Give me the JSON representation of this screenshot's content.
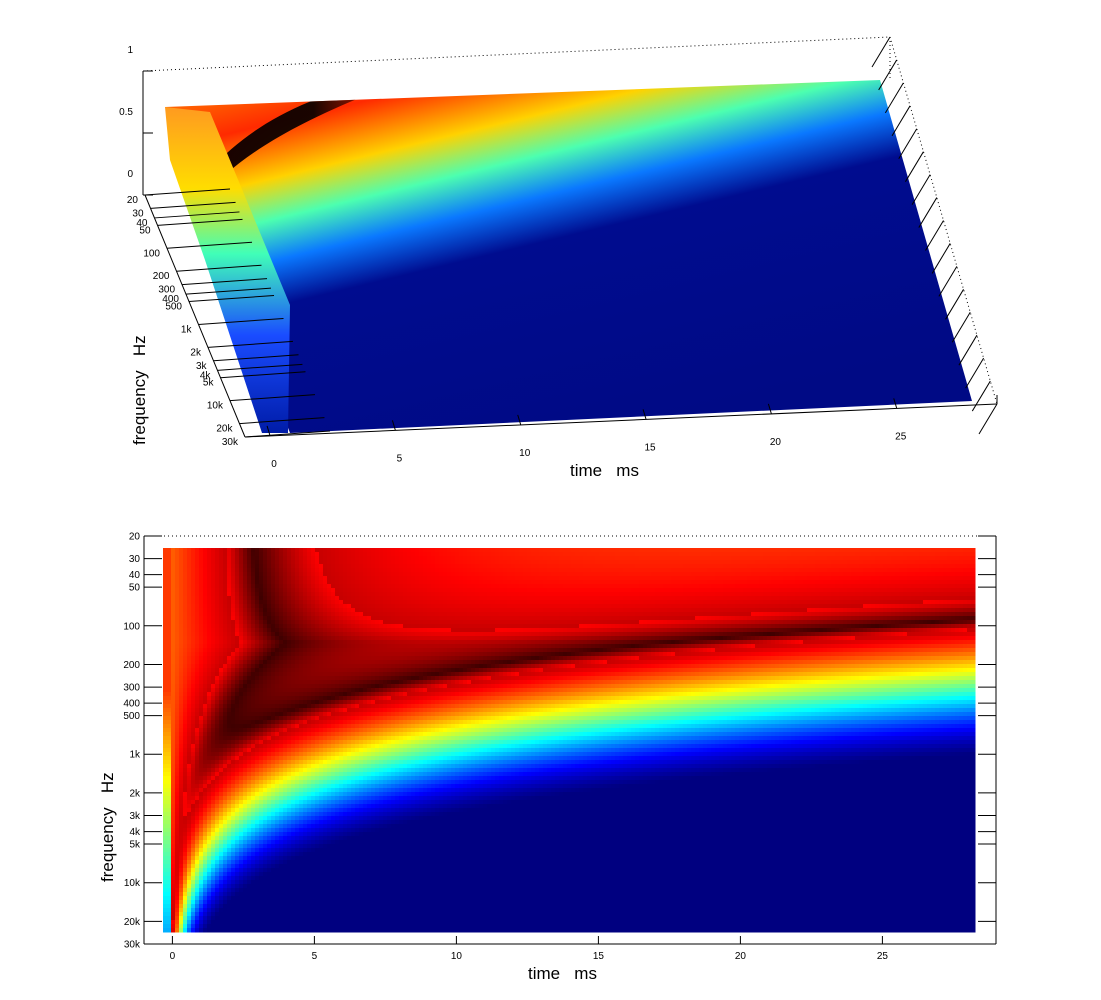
{
  "chart_data": [
    {
      "type": "surface",
      "view": "3d",
      "xlabel": "time   ms",
      "ylabel": "frequency   Hz",
      "x_ticks": [
        0,
        5,
        10,
        15,
        20,
        25
      ],
      "x_tick_labels": [
        "0",
        "5",
        "10",
        "15",
        "20",
        "25"
      ],
      "xlim": [
        -1,
        29
      ],
      "y_ticks": [
        20,
        30,
        40,
        50,
        100,
        200,
        300,
        400,
        500,
        1000,
        2000,
        3000,
        4000,
        5000,
        10000,
        20000,
        30000
      ],
      "y_tick_labels": [
        "20",
        "30",
        "40",
        "50",
        "100",
        "200",
        "300",
        "400",
        "500",
        "1k",
        "2k",
        "3k",
        "4k",
        "5k",
        "10k",
        "20k",
        "30k"
      ],
      "y_scale": "log",
      "ylim": [
        20,
        30000
      ],
      "z_ticks": [
        0,
        0.5,
        1
      ],
      "z_tick_labels": [
        "0",
        "0.5",
        "1"
      ],
      "zlim": [
        0,
        1
      ],
      "colormap": "jet",
      "grid": true
    },
    {
      "type": "heatmap",
      "view": "2d",
      "xlabel": "time   ms",
      "ylabel": "frequency   Hz",
      "x_ticks": [
        0,
        5,
        10,
        15,
        20,
        25
      ],
      "x_tick_labels": [
        "0",
        "5",
        "10",
        "15",
        "20",
        "25"
      ],
      "xlim": [
        -1,
        29
      ],
      "y_ticks": [
        20,
        30,
        40,
        50,
        100,
        200,
        300,
        400,
        500,
        1000,
        2000,
        3000,
        4000,
        5000,
        10000,
        20000,
        30000
      ],
      "y_tick_labels": [
        "20",
        "30",
        "40",
        "50",
        "100",
        "200",
        "300",
        "400",
        "500",
        "1k",
        "2k",
        "3k",
        "4k",
        "5k",
        "10k",
        "20k",
        "30k"
      ],
      "y_scale": "log",
      "ylim": [
        20,
        30000
      ],
      "colormap": "jet"
    }
  ]
}
